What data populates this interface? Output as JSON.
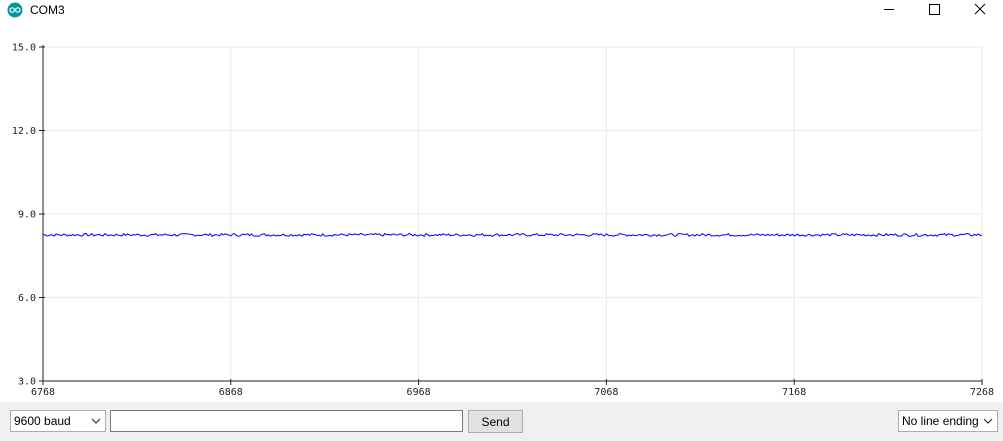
{
  "window": {
    "title": "COM3",
    "controls": [
      "minimize-icon",
      "maximize-icon",
      "close-icon"
    ]
  },
  "colors": {
    "series": "#0000ff",
    "grid": "#ebebeb",
    "axis": "#222222",
    "app_icon": "#00979c",
    "bottom_bar": "#f0f0f0"
  },
  "chart_data": {
    "type": "line",
    "x_range": [
      6768,
      7268
    ],
    "y_range": [
      3.0,
      15.0
    ],
    "x_ticks": [
      6768,
      6868,
      6968,
      7068,
      7168,
      7268
    ],
    "x_tick_labels": [
      "6768",
      "6868",
      "6968",
      "7068",
      "7168",
      "7268"
    ],
    "y_ticks": [
      3,
      6,
      9,
      12,
      15
    ],
    "y_tick_labels": [
      "3.0",
      "6.0",
      "9.0",
      "12.0",
      "15.0"
    ],
    "grid": true,
    "series": [
      {
        "color": "#0000ff",
        "baseline": 8.25,
        "noise": 0.05
      }
    ]
  },
  "bottom": {
    "baud_label": "9600 baud",
    "input_value": "",
    "send_label": "Send",
    "line_ending_label": "No line ending"
  }
}
